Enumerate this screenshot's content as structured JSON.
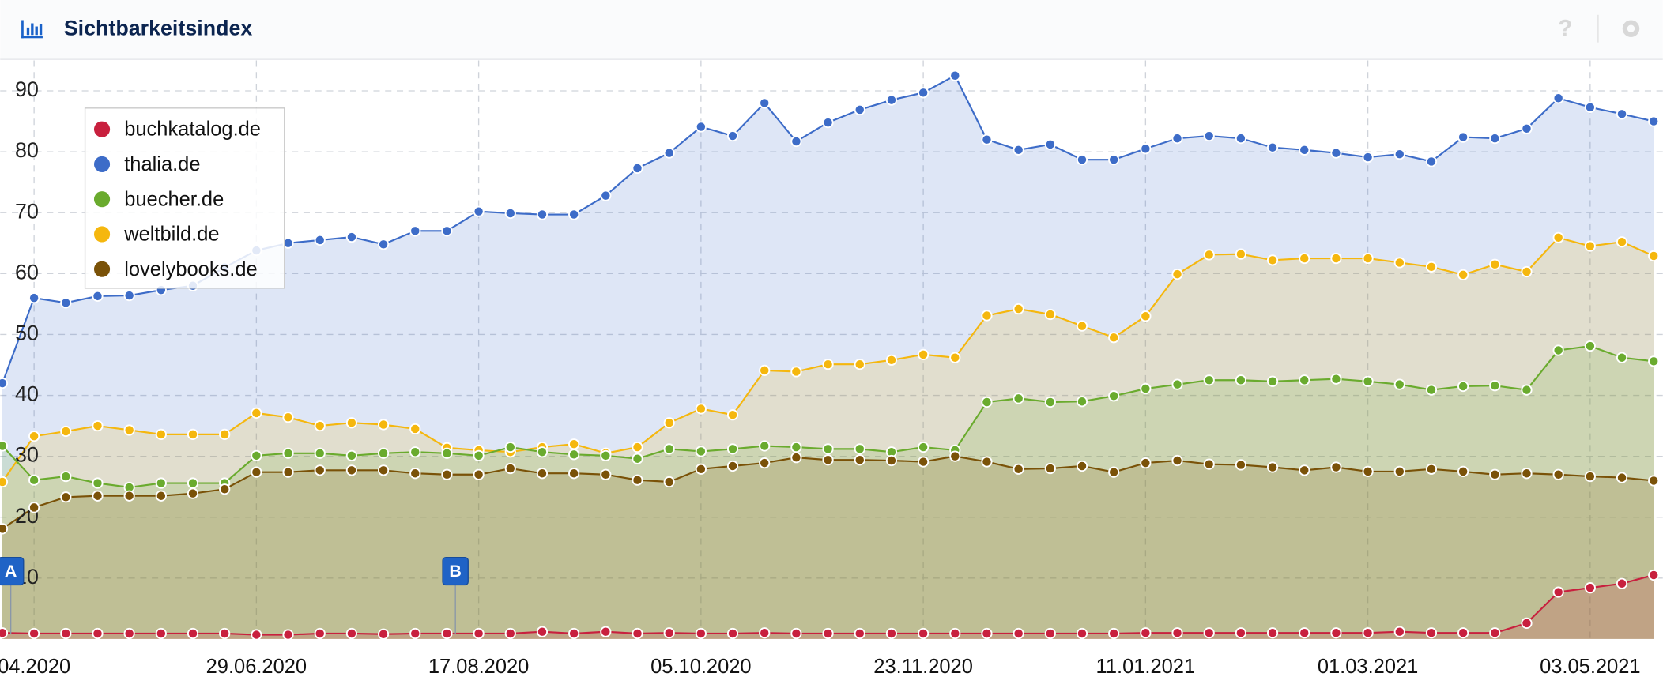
{
  "header": {
    "title": "Sichtbarkeitsindex"
  },
  "chart_data": {
    "type": "area",
    "categories": [
      null,
      "04.2020",
      null,
      null,
      null,
      null,
      null,
      null,
      "29.06.2020",
      null,
      null,
      null,
      null,
      null,
      null,
      "17.08.2020",
      null,
      null,
      null,
      null,
      null,
      null,
      "05.10.2020",
      null,
      null,
      null,
      null,
      null,
      null,
      "23.11.2020",
      null,
      null,
      null,
      null,
      null,
      null,
      "11.01.2021",
      null,
      null,
      null,
      null,
      null,
      null,
      "01.03.2021",
      null,
      null,
      null,
      null,
      null,
      null,
      "03.05.2021",
      null,
      null
    ],
    "ylim": [
      0,
      95
    ],
    "yticks": [
      10,
      20,
      30,
      40,
      50,
      60,
      70,
      80,
      90
    ],
    "grid": true,
    "legend": "upper left",
    "annotations": [
      {
        "label": "A",
        "x": 0
      },
      {
        "label": "B",
        "x": 14
      }
    ],
    "series": [
      {
        "name": "buchkatalog.de",
        "color": "#c8203e",
        "values": [
          1.0,
          0.9,
          0.9,
          0.9,
          0.9,
          0.9,
          0.9,
          0.9,
          0.7,
          0.7,
          0.9,
          0.9,
          0.8,
          0.9,
          0.9,
          0.9,
          0.9,
          1.2,
          0.9,
          1.2,
          0.9,
          1.0,
          0.9,
          0.9,
          1.0,
          0.9,
          0.9,
          0.9,
          0.9,
          0.9,
          0.9,
          0.9,
          0.9,
          0.9,
          0.9,
          0.9,
          1.0,
          1.0,
          1.0,
          1.0,
          1.0,
          1.0,
          1.0,
          1.0,
          1.2,
          1.0,
          1.0,
          1.0,
          2.6,
          7.7,
          8.4,
          9.1,
          10.5
        ]
      },
      {
        "name": "thalia.de",
        "color": "#3d6cc8",
        "values": [
          42,
          56,
          55.2,
          56.3,
          56.4,
          57.3,
          58,
          61,
          63.8,
          65,
          65.5,
          66,
          64.8,
          67,
          67,
          70.2,
          69.9,
          69.7,
          69.7,
          72.8,
          77.3,
          79.8,
          84.1,
          82.6,
          88,
          81.7,
          84.8,
          86.9,
          88.5,
          89.7,
          92.5,
          82,
          80.3,
          81.2,
          78.7,
          78.7,
          80.5,
          82.2,
          82.6,
          82.2,
          80.7,
          80.3,
          79.8,
          79.1,
          79.6,
          78.4,
          82.4,
          82.2,
          83.8,
          88.8,
          87.3,
          86.2,
          85
        ]
      },
      {
        "name": "buecher.de",
        "color": "#6aab2e",
        "values": [
          31.7,
          26.1,
          26.7,
          25.6,
          24.9,
          25.6,
          25.6,
          25.6,
          30.1,
          30.5,
          30.5,
          30.1,
          30.5,
          30.7,
          30.5,
          30.1,
          31.5,
          30.7,
          30.3,
          30.1,
          29.6,
          31.2,
          30.8,
          31.2,
          31.7,
          31.5,
          31.2,
          31.2,
          30.7,
          31.5,
          31,
          38.9,
          39.5,
          38.9,
          39,
          39.9,
          41.1,
          41.8,
          42.5,
          42.5,
          42.3,
          42.5,
          42.7,
          42.3,
          41.8,
          40.9,
          41.5,
          41.6,
          40.9,
          47.4,
          48.1,
          46.2,
          45.6
        ]
      },
      {
        "name": "weltbild.de",
        "color": "#f5b70e",
        "values": [
          25.8,
          33.3,
          34.1,
          35,
          34.3,
          33.6,
          33.6,
          33.6,
          37.1,
          36.4,
          35,
          35.5,
          35.2,
          34.5,
          31.4,
          31,
          30.7,
          31.5,
          32,
          30.5,
          31.5,
          35.5,
          37.8,
          36.8,
          44.1,
          43.9,
          45.1,
          45.1,
          45.8,
          46.7,
          46.2,
          53.1,
          54.2,
          53.3,
          51.4,
          49.5,
          53,
          59.9,
          63.1,
          63.2,
          62.2,
          62.5,
          62.5,
          62.5,
          61.8,
          61.1,
          59.8,
          61.5,
          60.3,
          65.9,
          64.5,
          65.2,
          62.9
        ]
      },
      {
        "name": "lovelybooks.de",
        "color": "#7a5208",
        "values": [
          18.1,
          21.6,
          23.3,
          23.5,
          23.5,
          23.5,
          23.9,
          24.6,
          27.4,
          27.4,
          27.7,
          27.7,
          27.7,
          27.2,
          27,
          27,
          28,
          27.2,
          27.2,
          27,
          26.1,
          25.8,
          27.9,
          28.4,
          28.9,
          29.8,
          29.4,
          29.4,
          29.3,
          29.1,
          30,
          29.1,
          27.9,
          28,
          28.4,
          27.4,
          28.9,
          29.3,
          28.7,
          28.6,
          28.2,
          27.7,
          28.2,
          27.5,
          27.5,
          27.9,
          27.5,
          27,
          27.2,
          27,
          26.7,
          26.5,
          26
        ]
      }
    ]
  }
}
